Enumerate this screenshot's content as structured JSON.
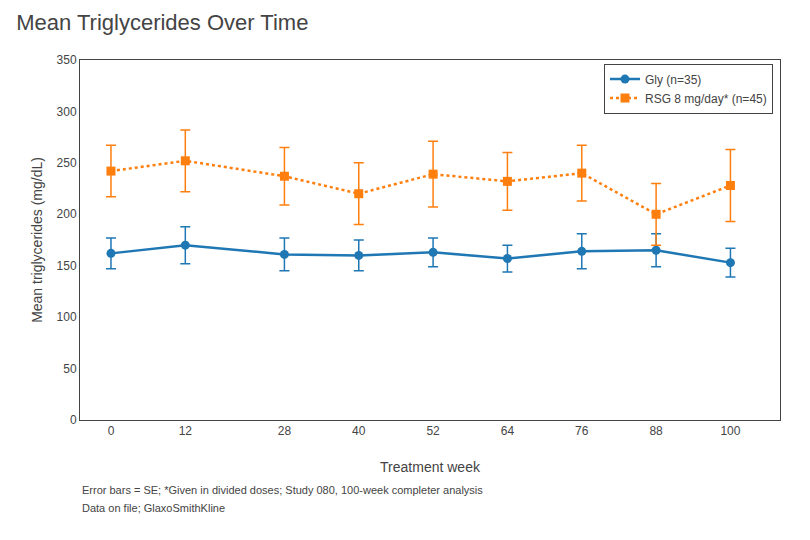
{
  "chart_data": {
    "type": "line",
    "title": "Mean Triglycerides Over Time",
    "x_label": "Treatment week",
    "y_label": "Mean triglycerides (mg/dL)",
    "x": [
      0,
      12,
      28,
      40,
      52,
      64,
      76,
      88,
      100
    ],
    "series": [
      {
        "name": "Gly (n=35)",
        "values": [
          162,
          170,
          161,
          160,
          163,
          157,
          164,
          165,
          153
        ],
        "errors": [
          15,
          18,
          16,
          15,
          14,
          13,
          17,
          16,
          14
        ],
        "marker": "circle",
        "line_style": "solid"
      },
      {
        "name": "RSG 8 mg/day* (n=45)",
        "values": [
          242,
          252,
          237,
          220,
          239,
          232,
          240,
          200,
          228
        ],
        "errors": [
          25,
          30,
          28,
          30,
          32,
          28,
          27,
          30,
          35
        ],
        "marker": "square",
        "line_style": "dotted"
      }
    ],
    "xlim": [
      -5,
      108
    ],
    "xticks": [
      0,
      12,
      28,
      40,
      52,
      64,
      76,
      88,
      100
    ],
    "ylim": [
      0,
      350
    ],
    "yticks": [
      0,
      50,
      100,
      150,
      200,
      250,
      300,
      350
    ],
    "grid": false,
    "legend": "upper right",
    "annotations": [
      "Error bars = SE; *Given in divided doses; Study 080, 100-week completer analysis",
      "Data on file; GlaxoSmithKline"
    ]
  }
}
